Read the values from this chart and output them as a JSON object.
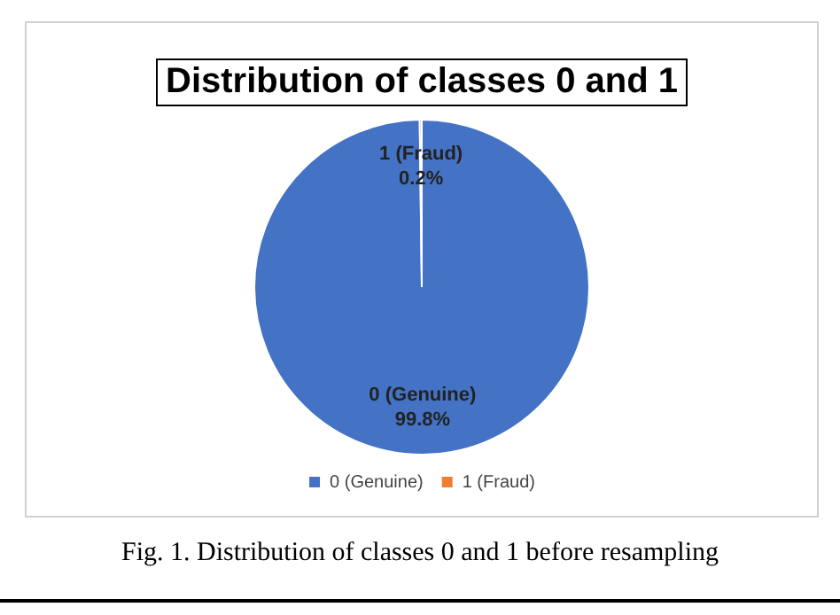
{
  "chart_data": {
    "type": "pie",
    "title": "Distribution of classes 0 and 1",
    "categories": [
      "0 (Genuine)",
      "1 (Fraud)"
    ],
    "values": [
      99.8,
      0.2
    ],
    "colors": [
      "#4472c4",
      "#ed7d31"
    ],
    "value_labels": [
      "99.8%",
      "0.2%"
    ],
    "legend": "bottom",
    "annotations": [
      "Fig. 1. Distribution of classes 0 and 1 before resampling"
    ]
  }
}
